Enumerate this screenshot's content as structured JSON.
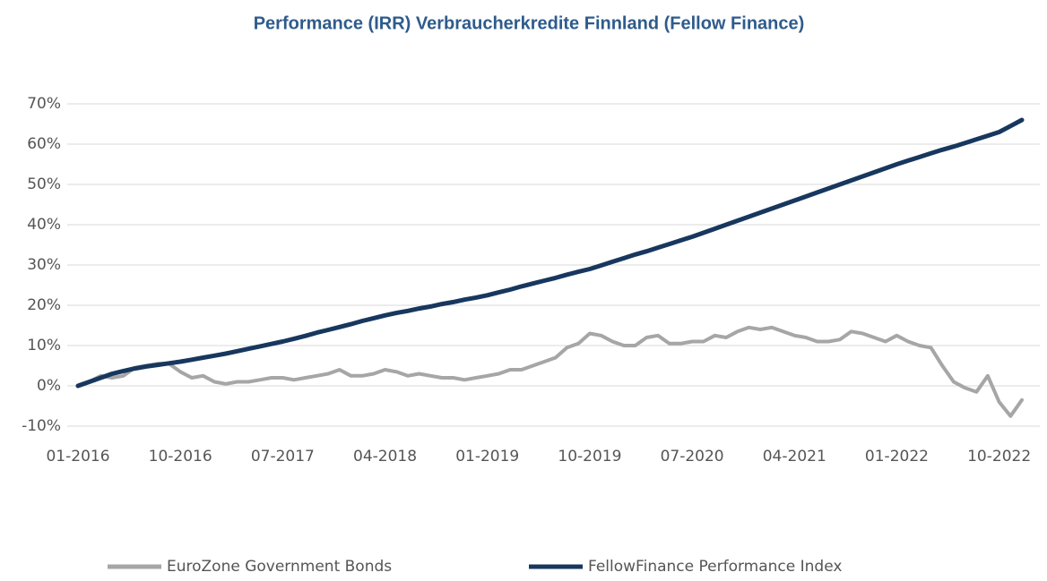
{
  "chart_data": {
    "type": "line",
    "title": "Performance (IRR) Verbraucherkredite Finnland (Fellow Finance)",
    "categories": [
      "01-2016",
      null,
      null,
      null,
      null,
      null,
      null,
      null,
      null,
      "10-2016",
      null,
      null,
      null,
      null,
      null,
      null,
      null,
      null,
      "07-2017",
      null,
      null,
      null,
      null,
      null,
      null,
      null,
      null,
      "04-2018",
      null,
      null,
      null,
      null,
      null,
      null,
      null,
      null,
      "01-2019",
      null,
      null,
      null,
      null,
      null,
      null,
      null,
      null,
      "10-2019",
      null,
      null,
      null,
      null,
      null,
      null,
      null,
      null,
      "07-2020",
      null,
      null,
      null,
      null,
      null,
      null,
      null,
      null,
      "04-2021",
      null,
      null,
      null,
      null,
      null,
      null,
      null,
      null,
      "01-2022",
      null,
      null,
      null,
      null,
      null,
      null,
      null,
      null,
      "10-2022",
      null,
      null
    ],
    "series": [
      {
        "name": "EuroZone Government Bonds",
        "color": "#a6a6a6",
        "values": [
          0,
          1,
          2.5,
          2,
          2.5,
          4.5,
          5,
          5.5,
          5.5,
          3.5,
          2,
          2.5,
          1,
          0.5,
          1,
          1,
          1.5,
          2,
          2,
          1.5,
          2,
          2.5,
          3,
          4,
          2.5,
          2.5,
          3,
          4,
          3.5,
          2.5,
          3,
          2.5,
          2,
          2,
          1.5,
          2,
          2.5,
          3,
          4,
          4,
          5,
          6,
          7,
          9.5,
          10.5,
          13,
          12.5,
          11,
          10,
          10,
          12,
          12.5,
          10.5,
          10.5,
          11,
          11,
          12.5,
          12,
          13.5,
          14.5,
          14,
          14.5,
          13.5,
          12.5,
          12,
          11,
          11,
          11.5,
          13.5,
          13,
          12,
          11,
          12.5,
          11,
          10,
          9.5,
          5,
          1,
          -0.5,
          -1.5,
          2.5,
          -4,
          -7.5,
          -3.5
        ]
      },
      {
        "name": "FellowFinance Performance Index",
        "color": "#17375e",
        "values": [
          0,
          1,
          2,
          3,
          3.7,
          4.3,
          4.8,
          5.2,
          5.6,
          6,
          6.5,
          7,
          7.5,
          8,
          8.6,
          9.2,
          9.8,
          10.4,
          11,
          11.7,
          12.4,
          13.2,
          13.9,
          14.6,
          15.3,
          16.1,
          16.8,
          17.5,
          18.1,
          18.6,
          19.2,
          19.7,
          20.3,
          20.8,
          21.4,
          21.9,
          22.5,
          23.2,
          23.9,
          24.7,
          25.4,
          26.1,
          26.8,
          27.6,
          28.3,
          29,
          29.9,
          30.8,
          31.7,
          32.6,
          33.4,
          34.3,
          35.2,
          36.1,
          37,
          38,
          39,
          40,
          41,
          42,
          43,
          44,
          45,
          46,
          47,
          48,
          49,
          50,
          51,
          52,
          53,
          54,
          55,
          55.9,
          56.8,
          57.7,
          58.6,
          59.4,
          60.3,
          61.2,
          62.1,
          63,
          64.5,
          66
        ]
      }
    ],
    "ylim": [
      -10,
      70
    ],
    "yticks": [
      {
        "value": -10,
        "label": "-10%"
      },
      {
        "value": 0,
        "label": "0%"
      },
      {
        "value": 10,
        "label": "10%"
      },
      {
        "value": 20,
        "label": "20%"
      },
      {
        "value": 30,
        "label": "30%"
      },
      {
        "value": 40,
        "label": "40%"
      },
      {
        "value": 50,
        "label": "50%"
      },
      {
        "value": 60,
        "label": "60%"
      },
      {
        "value": 70,
        "label": "70%"
      }
    ],
    "grid": true,
    "legend": "bottom"
  }
}
